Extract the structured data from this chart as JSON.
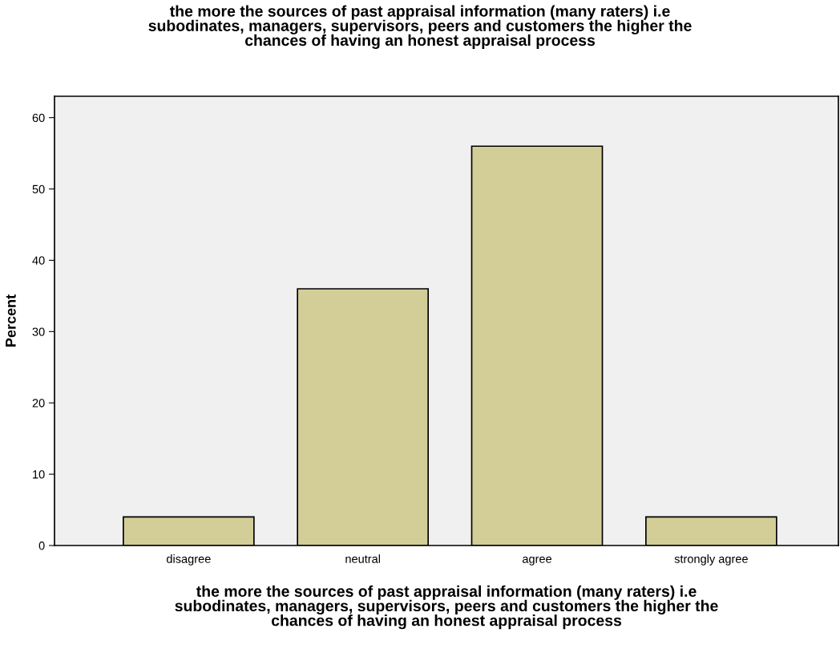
{
  "chart_data": {
    "type": "bar",
    "title": "the more the sources of past appraisal information (many raters) i.e\nsubodinates, managers, supervisors, peers and customers the higher the\nchances of having an honest appraisal process",
    "xlabel": "the more the sources of past appraisal information (many raters) i.e\nsubodinates, managers, supervisors, peers and customers the higher the\nchances of having an honest appraisal process",
    "ylabel": "Percent",
    "categories": [
      "disagree",
      "neutral",
      "agree",
      "strongly agree"
    ],
    "values": [
      4,
      36,
      56,
      4
    ],
    "color": "#d3ce97",
    "ylim": [
      0,
      63
    ],
    "yticks": [
      0,
      10,
      20,
      30,
      40,
      50,
      60
    ],
    "grid": false
  }
}
